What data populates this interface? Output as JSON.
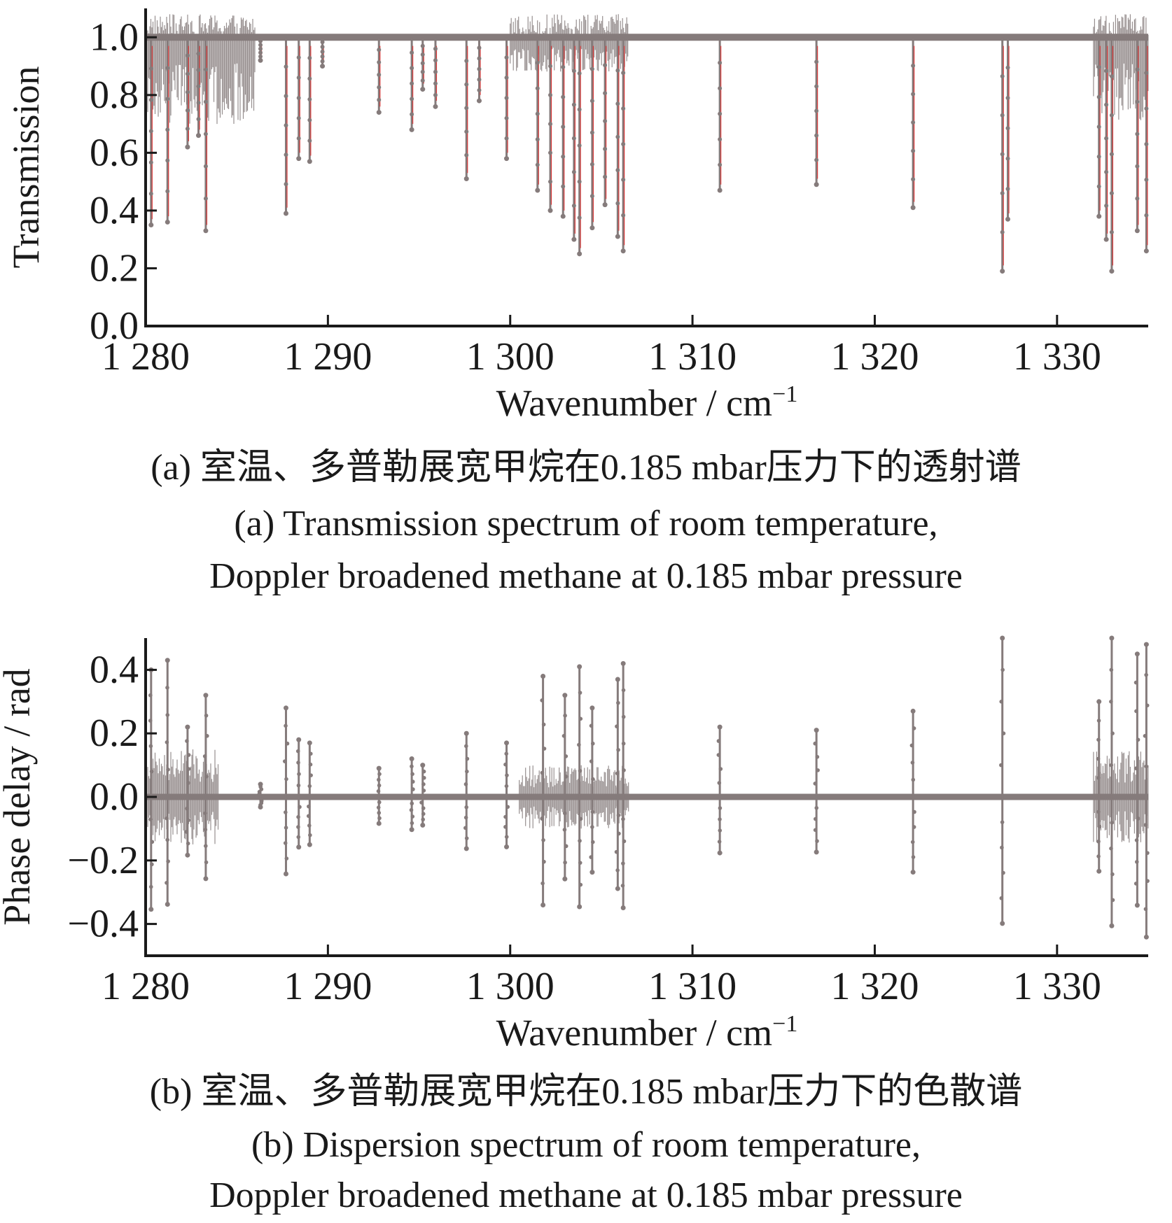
{
  "chart_data": [
    {
      "id": "a",
      "type": "line",
      "xlabel": "Wavenumber / cm",
      "xlabel_sup": "−1",
      "ylabel": "Transmission",
      "xlim": [
        1280,
        1335
      ],
      "ylim": [
        0.0,
        1.1
      ],
      "x_ticks": [
        1280,
        1290,
        1300,
        1310,
        1320,
        1330
      ],
      "x_tick_labels": [
        "1 280",
        "1 290",
        "1 300",
        "1 310",
        "1 320",
        "1 330"
      ],
      "y_ticks": [
        0.0,
        0.2,
        0.4,
        0.6,
        0.8,
        1.0
      ],
      "y_tick_labels": [
        "0.0",
        "0.2",
        "0.4",
        "0.6",
        "0.8",
        "1.0"
      ],
      "grid": false,
      "series_colors": {
        "measured": "#857b7b",
        "model": "#d83a3a"
      },
      "baseline": 1.0,
      "absorption_lines": [
        {
          "x": 1280.3,
          "y": 0.35
        },
        {
          "x": 1281.2,
          "y": 0.36
        },
        {
          "x": 1282.3,
          "y": 0.62
        },
        {
          "x": 1282.9,
          "y": 0.66
        },
        {
          "x": 1283.3,
          "y": 0.33
        },
        {
          "x": 1286.3,
          "y": 0.92
        },
        {
          "x": 1287.7,
          "y": 0.39
        },
        {
          "x": 1288.4,
          "y": 0.58
        },
        {
          "x": 1289.0,
          "y": 0.57
        },
        {
          "x": 1289.7,
          "y": 0.9
        },
        {
          "x": 1292.8,
          "y": 0.74
        },
        {
          "x": 1294.6,
          "y": 0.68
        },
        {
          "x": 1295.2,
          "y": 0.82
        },
        {
          "x": 1295.9,
          "y": 0.76
        },
        {
          "x": 1297.6,
          "y": 0.51
        },
        {
          "x": 1298.3,
          "y": 0.78
        },
        {
          "x": 1299.8,
          "y": 0.58
        },
        {
          "x": 1301.5,
          "y": 0.47
        },
        {
          "x": 1302.2,
          "y": 0.4
        },
        {
          "x": 1302.9,
          "y": 0.38
        },
        {
          "x": 1303.5,
          "y": 0.3
        },
        {
          "x": 1303.8,
          "y": 0.25
        },
        {
          "x": 1304.5,
          "y": 0.34
        },
        {
          "x": 1305.2,
          "y": 0.42
        },
        {
          "x": 1305.9,
          "y": 0.31
        },
        {
          "x": 1306.2,
          "y": 0.26
        },
        {
          "x": 1311.5,
          "y": 0.47
        },
        {
          "x": 1316.8,
          "y": 0.49
        },
        {
          "x": 1322.1,
          "y": 0.41
        },
        {
          "x": 1327.0,
          "y": 0.19
        },
        {
          "x": 1327.3,
          "y": 0.37
        },
        {
          "x": 1332.3,
          "y": 0.38
        },
        {
          "x": 1332.7,
          "y": 0.3
        },
        {
          "x": 1333.0,
          "y": 0.19
        },
        {
          "x": 1334.4,
          "y": 0.33
        },
        {
          "x": 1334.9,
          "y": 0.26
        }
      ],
      "noise_bands": [
        {
          "x_from": 1280.0,
          "x_to": 1286.0,
          "amplitude": 0.3
        },
        {
          "x_from": 1300.0,
          "x_to": 1306.5,
          "amplitude": 0.12
        },
        {
          "x_from": 1332.0,
          "x_to": 1335.0,
          "amplitude": 0.3
        }
      ]
    },
    {
      "id": "b",
      "type": "line",
      "xlabel": "Wavenumber / cm",
      "xlabel_sup": "−1",
      "ylabel": "Phase delay / rad",
      "xlim": [
        1280,
        1335
      ],
      "ylim": [
        -0.5,
        0.5
      ],
      "x_ticks": [
        1280,
        1290,
        1300,
        1310,
        1320,
        1330
      ],
      "x_tick_labels": [
        "1 280",
        "1 290",
        "1 300",
        "1 310",
        "1 320",
        "1 330"
      ],
      "y_ticks": [
        -0.4,
        -0.2,
        0.0,
        0.2,
        0.4
      ],
      "y_tick_labels": [
        "−0.4",
        "−0.2",
        "0.0",
        "0.2",
        "0.4"
      ],
      "grid": false,
      "series_colors": {
        "measured": "#857b7b"
      },
      "baseline": 0.0,
      "dispersion_lines": [
        {
          "x": 1280.3,
          "amp": 0.4
        },
        {
          "x": 1281.2,
          "amp": 0.43
        },
        {
          "x": 1282.3,
          "amp": 0.22
        },
        {
          "x": 1283.3,
          "amp": 0.32
        },
        {
          "x": 1286.3,
          "amp": 0.04
        },
        {
          "x": 1287.7,
          "amp": 0.28
        },
        {
          "x": 1288.4,
          "amp": 0.18
        },
        {
          "x": 1289.0,
          "amp": 0.17
        },
        {
          "x": 1292.8,
          "amp": 0.09
        },
        {
          "x": 1294.6,
          "amp": 0.12
        },
        {
          "x": 1295.2,
          "amp": 0.1
        },
        {
          "x": 1297.6,
          "amp": 0.2
        },
        {
          "x": 1299.8,
          "amp": 0.17
        },
        {
          "x": 1301.8,
          "amp": 0.38
        },
        {
          "x": 1303.0,
          "amp": 0.32
        },
        {
          "x": 1303.8,
          "amp": 0.41
        },
        {
          "x": 1304.5,
          "amp": 0.28
        },
        {
          "x": 1305.9,
          "amp": 0.37
        },
        {
          "x": 1306.2,
          "amp": 0.42
        },
        {
          "x": 1311.5,
          "amp": 0.22
        },
        {
          "x": 1316.8,
          "amp": 0.21
        },
        {
          "x": 1322.1,
          "amp": 0.27
        },
        {
          "x": 1327.0,
          "amp": 0.5
        },
        {
          "x": 1332.3,
          "amp": 0.3
        },
        {
          "x": 1333.0,
          "amp": 0.5
        },
        {
          "x": 1334.4,
          "amp": 0.45
        },
        {
          "x": 1334.9,
          "amp": 0.48
        }
      ],
      "noise_bands": [
        {
          "x_from": 1280.0,
          "x_to": 1284.0,
          "amplitude": 0.15
        },
        {
          "x_from": 1300.5,
          "x_to": 1306.5,
          "amplitude": 0.1
        },
        {
          "x_from": 1332.0,
          "x_to": 1335.0,
          "amplitude": 0.15
        }
      ]
    }
  ],
  "captions": {
    "a_cn": "(a) 室温、多普勒展宽甲烷在0.185 mbar压力下的透射谱",
    "a_en_1": "(a) Transmission spectrum of room temperature,",
    "a_en_2": "Doppler broadened methane at 0.185 mbar pressure",
    "b_cn": "(b) 室温、多普勒展宽甲烷在0.185 mbar压力下的色散谱",
    "b_en_1": "(b) Dispersion spectrum of room temperature,",
    "b_en_2": "Doppler broadened methane at 0.185 mbar pressure"
  }
}
